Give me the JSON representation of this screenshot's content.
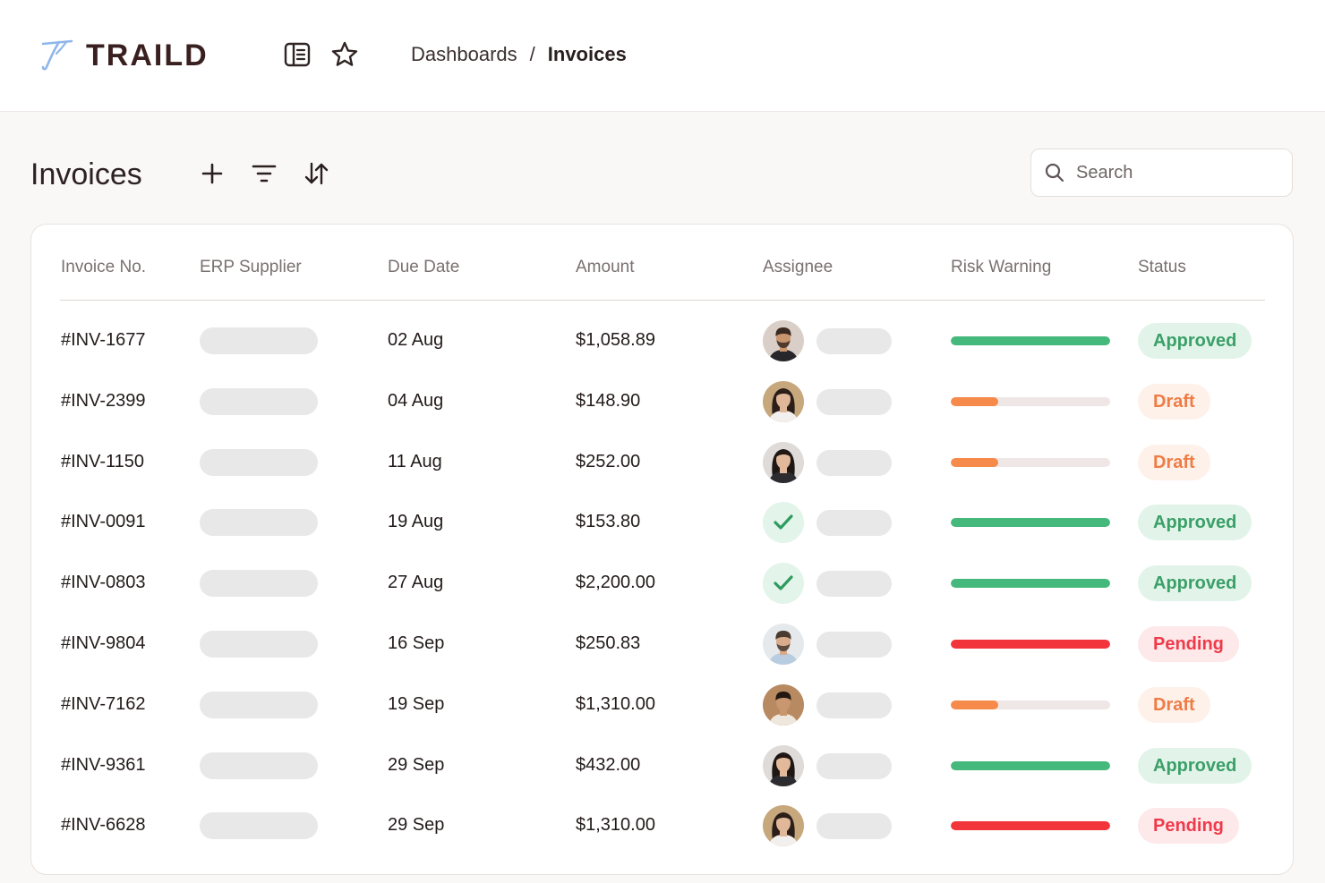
{
  "header": {
    "brand": "TRAILD",
    "breadcrumb": {
      "parent": "Dashboards",
      "separator": "/",
      "current": "Invoices"
    }
  },
  "page": {
    "title": "Invoices",
    "search_placeholder": "Search"
  },
  "table": {
    "columns": [
      "Invoice No.",
      "ERP Supplier",
      "Due Date",
      "Amount",
      "Assignee",
      "Risk Warning",
      "Status"
    ],
    "rows": [
      {
        "invoice": "#INV-1677",
        "due": "02 Aug",
        "amount": "$1,058.89",
        "assignee": "man-bearded",
        "risk": 1.0,
        "risk_level": "low",
        "status": "Approved"
      },
      {
        "invoice": "#INV-2399",
        "due": "04 Aug",
        "amount": "$148.90",
        "assignee": "woman-smiling",
        "risk": 0.3,
        "risk_level": "medium",
        "status": "Draft"
      },
      {
        "invoice": "#INV-1150",
        "due": "11 Aug",
        "amount": "$252.00",
        "assignee": "woman-dark-hair",
        "risk": 0.3,
        "risk_level": "medium",
        "status": "Draft"
      },
      {
        "invoice": "#INV-0091",
        "due": "19 Aug",
        "amount": "$153.80",
        "assignee": "check",
        "risk": 1.0,
        "risk_level": "low",
        "status": "Approved"
      },
      {
        "invoice": "#INV-0803",
        "due": "27 Aug",
        "amount": "$2,200.00",
        "assignee": "check",
        "risk": 1.0,
        "risk_level": "low",
        "status": "Approved"
      },
      {
        "invoice": "#INV-9804",
        "due": "16 Sep",
        "amount": "$250.83",
        "assignee": "man-light",
        "risk": 1.0,
        "risk_level": "high",
        "status": "Pending"
      },
      {
        "invoice": "#INV-7162",
        "due": "19 Sep",
        "amount": "$1,310.00",
        "assignee": "man-young",
        "risk": 0.3,
        "risk_level": "medium",
        "status": "Draft"
      },
      {
        "invoice": "#INV-9361",
        "due": "29 Sep",
        "amount": "$432.00",
        "assignee": "woman-dark-hair",
        "risk": 1.0,
        "risk_level": "low",
        "status": "Approved"
      },
      {
        "invoice": "#INV-6628",
        "due": "29 Sep",
        "amount": "$1,310.00",
        "assignee": "woman-smiling",
        "risk": 1.0,
        "risk_level": "high",
        "status": "Pending"
      }
    ]
  },
  "colors": {
    "risk_low": "#45b87c",
    "risk_medium": "#f58a4b",
    "risk_high": "#f2353a",
    "status_approved_bg": "#e2f4e9",
    "status_approved_fg": "#3b9f68",
    "status_draft_bg": "#fdf1ea",
    "status_draft_fg": "#ef7c45",
    "status_pending_bg": "#fde8ea",
    "status_pending_fg": "#ef3a4a"
  }
}
